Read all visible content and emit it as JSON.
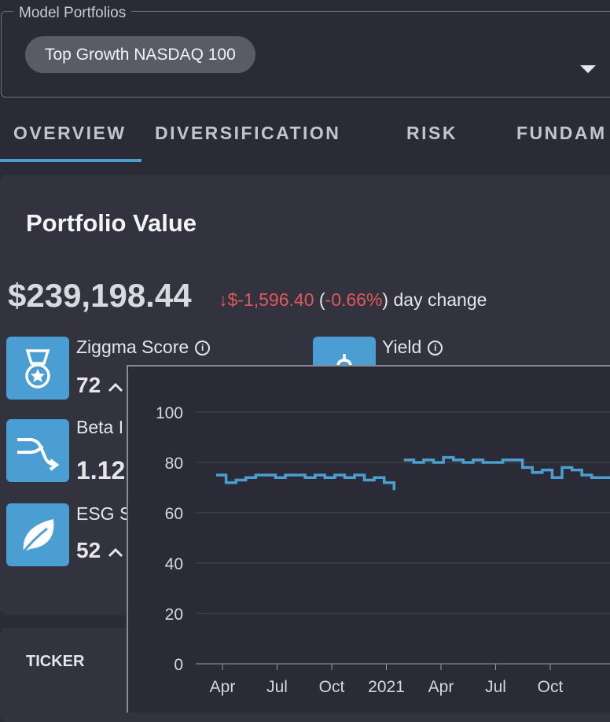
{
  "model_portfolios": {
    "legend": "Model Portfolios",
    "selected": "Top Growth NASDAQ 100"
  },
  "tabs": [
    {
      "label": "OVERVIEW",
      "active": true
    },
    {
      "label": "DIVERSIFICATION",
      "active": false
    },
    {
      "label": "RISK",
      "active": false
    },
    {
      "label": "FUNDAM",
      "active": false
    }
  ],
  "portfolio": {
    "title": "Portfolio Value",
    "value": "$239,198.44",
    "arrow": "↓",
    "change_amount": "$-1,596.40",
    "change_pct_open": "(",
    "change_pct": "-0.66%",
    "change_pct_close": ")",
    "change_suffix": "day change"
  },
  "metrics": [
    {
      "label": "Ziggma Score",
      "value": "72",
      "icon": "medal-icon"
    },
    {
      "label": "Beta I",
      "value": "1.12",
      "icon": "branch-icon"
    },
    {
      "label": "ESG S",
      "value": "52",
      "icon": "leaf-icon"
    }
  ],
  "yield": {
    "label": "Yield",
    "icon": "dollar-icon"
  },
  "info_glyph": "i",
  "table": {
    "first_header": "TICKER"
  },
  "colors": {
    "accent": "#4b9fd0",
    "negative": "#e0595a",
    "background": "#2a2b37",
    "card": "#32333f"
  },
  "chart_data": {
    "type": "line",
    "title": "",
    "xlabel": "",
    "ylabel": "",
    "ylim": [
      0,
      100
    ],
    "yticks": [
      0,
      20,
      40,
      60,
      80,
      100
    ],
    "xticks": [
      "Apr",
      "Jul",
      "Oct",
      "2021",
      "Apr",
      "Jul",
      "Oct"
    ],
    "grid": true,
    "x": [
      "Mar-30",
      "Apr-10",
      "Apr-25",
      "May-10",
      "May-25",
      "Jun-10",
      "Jun-25",
      "Jul-10",
      "Jul-25",
      "Aug-10",
      "Aug-25",
      "Sep-10",
      "Sep-25",
      "Oct-10",
      "Oct-25",
      "Nov-10",
      "Nov-25",
      "Dec-10",
      "Dec-28",
      "Jan-02",
      "Jan-15",
      "Feb-01",
      "Feb-15",
      "Mar-01",
      "Mar-15",
      "Apr-01",
      "Apr-15",
      "May-01",
      "May-15",
      "Jun-01",
      "Jun-15",
      "Jul-01",
      "Jul-15",
      "Aug-01",
      "Aug-15",
      "Sep-01",
      "Sep-15",
      "Oct-01",
      "Oct-15",
      "Nov-01",
      "Nov-15",
      "Dec-01",
      "Dec-15"
    ],
    "series": [
      {
        "values": [
          75,
          72,
          73,
          74,
          75,
          75,
          74,
          75,
          75,
          74,
          75,
          74,
          75,
          74,
          75,
          73,
          74,
          72,
          69,
          81,
          80,
          81,
          80,
          82,
          81,
          80,
          81,
          80,
          80,
          81,
          81,
          78,
          76,
          77,
          74,
          78,
          77,
          75,
          74,
          74,
          75,
          74,
          74
        ]
      }
    ]
  }
}
